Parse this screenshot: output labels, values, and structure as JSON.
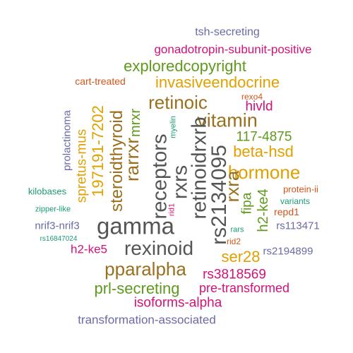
{
  "palette": {
    "purple": "#6a6aaa",
    "magenta": "#d1127a",
    "green": "#5f9a1e",
    "gold": "#e0a100",
    "brown": "#9a6f1e",
    "orange": "#d2561a",
    "teal": "#1b9a76",
    "gray": "#555555"
  },
  "words": [
    {
      "text": "tsh-secreting",
      "color": "purple"
    },
    {
      "text": "gonadotropin-subunit-positive",
      "color": "magenta"
    },
    {
      "text": "exploredcopyright",
      "color": "green"
    },
    {
      "text": "cart-treated",
      "color": "orange"
    },
    {
      "text": "invasiveendocrine",
      "color": "gold"
    },
    {
      "text": "rexo4",
      "color": "orange"
    },
    {
      "text": "retinoic",
      "color": "brown"
    },
    {
      "text": "hivld",
      "color": "magenta"
    },
    {
      "text": "vitamin",
      "color": "brown"
    },
    {
      "text": "117-4875",
      "color": "green"
    },
    {
      "text": "beta-hsd",
      "color": "gold"
    },
    {
      "text": "hormone",
      "color": "gold"
    },
    {
      "text": "prolactinoma",
      "color": "purple"
    },
    {
      "text": "spretus-mus",
      "color": "gold"
    },
    {
      "text": "197191-7202",
      "color": "gold"
    },
    {
      "text": "steroidthyroid",
      "color": "brown"
    },
    {
      "text": "mrxr",
      "color": "green"
    },
    {
      "text": "rarrxr",
      "color": "brown"
    },
    {
      "text": "receptors",
      "color": "gray"
    },
    {
      "text": "rxrs",
      "color": "gray"
    },
    {
      "text": "myelin",
      "color": "teal"
    },
    {
      "text": "retinoidrxrb",
      "color": "gray"
    },
    {
      "text": "rs2134095",
      "color": "gray"
    },
    {
      "text": "rxra",
      "color": "brown"
    },
    {
      "text": "fipa",
      "color": "green"
    },
    {
      "text": "h2-ke4",
      "color": "green"
    },
    {
      "text": "kilobases",
      "color": "teal"
    },
    {
      "text": "protein-ii",
      "color": "orange"
    },
    {
      "text": "variants",
      "color": "teal"
    },
    {
      "text": "zipper-like",
      "color": "teal"
    },
    {
      "text": "repd1",
      "color": "orange"
    },
    {
      "text": "rid1",
      "color": "magenta"
    },
    {
      "text": "nrif3-nrif3",
      "color": "purple"
    },
    {
      "text": "gamma",
      "color": "gray"
    },
    {
      "text": "rs113471",
      "color": "purple"
    },
    {
      "text": "rars",
      "color": "teal"
    },
    {
      "text": "rs16847024",
      "color": "teal"
    },
    {
      "text": "rid2",
      "color": "orange"
    },
    {
      "text": "h2-ke5",
      "color": "magenta"
    },
    {
      "text": "rexinoid",
      "color": "gray"
    },
    {
      "text": "ser28",
      "color": "gold"
    },
    {
      "text": "rs2194899",
      "color": "purple"
    },
    {
      "text": "pparalpha",
      "color": "brown"
    },
    {
      "text": "rs3818569",
      "color": "magenta"
    },
    {
      "text": "prl-secreting",
      "color": "green"
    },
    {
      "text": "pre-transformed",
      "color": "magenta"
    },
    {
      "text": "isoforms-alpha",
      "color": "magenta"
    },
    {
      "text": "transformation-associated",
      "color": "purple"
    }
  ]
}
